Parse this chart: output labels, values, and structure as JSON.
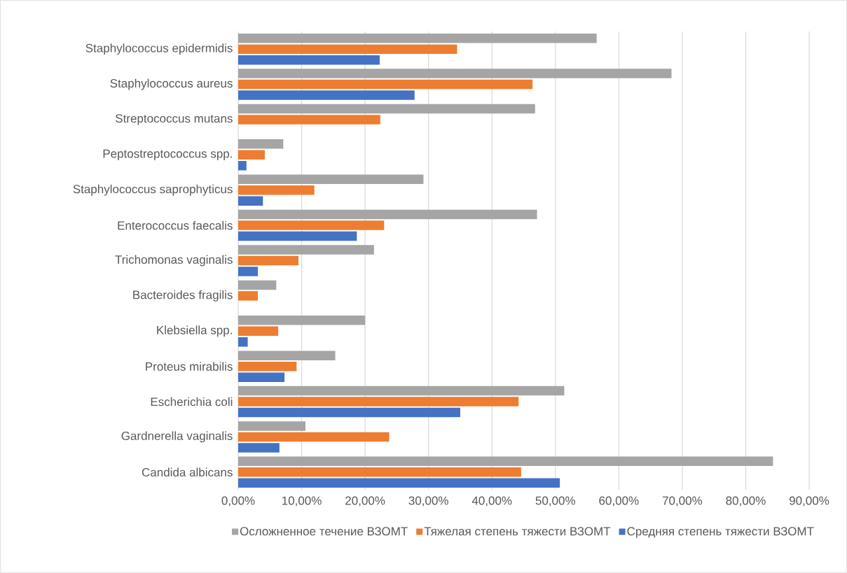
{
  "chart_data": {
    "type": "bar",
    "orientation": "horizontal",
    "categories": [
      "Staphylococcus epidermidis",
      "Staphylococcus aureus",
      "Streptococcus mutans",
      "Peptostreptococcus spp.",
      "Staphylococcus saprophyticus",
      "Enterococcus faecalis",
      "Trichomonas vaginalis",
      "Bacteroides fragilis",
      "Klebsiella spp.",
      "Proteus mirabilis",
      "Escherichia coli",
      "Gardnerella vaginalis",
      "Candida albicans"
    ],
    "series": [
      {
        "name": "Осложненное течение ВЗОМТ",
        "color": "#a5a5a5",
        "values": [
          56.5,
          68.3,
          46.8,
          7.1,
          29.2,
          47.1,
          21.4,
          6.0,
          20.0,
          15.3,
          51.4,
          10.6,
          84.3
        ]
      },
      {
        "name": "Тяжелая степень тяжести ВЗОМТ",
        "color": "#ed7d31",
        "values": [
          34.5,
          46.4,
          22.4,
          4.2,
          12.0,
          23.0,
          9.5,
          3.1,
          6.3,
          9.2,
          44.2,
          23.8,
          44.6
        ]
      },
      {
        "name": "Средняя степень тяжести ВЗОМТ",
        "color": "#4472c4",
        "values": [
          22.3,
          27.8,
          null,
          1.3,
          3.9,
          18.7,
          3.1,
          null,
          1.5,
          7.3,
          35.0,
          6.5,
          50.7
        ]
      }
    ],
    "xlim": [
      0,
      90
    ],
    "xticks": [
      {
        "value": 0,
        "label": "0,00%"
      },
      {
        "value": 10,
        "label": "10,00%"
      },
      {
        "value": 20,
        "label": "20,00%"
      },
      {
        "value": 30,
        "label": "30,00%"
      },
      {
        "value": 40,
        "label": "40,00%"
      },
      {
        "value": 50,
        "label": "50,00%"
      },
      {
        "value": 60,
        "label": "60,00%"
      },
      {
        "value": 70,
        "label": "70,00%"
      },
      {
        "value": 80,
        "label": "80,00%"
      },
      {
        "value": 90,
        "label": "90,00%"
      }
    ],
    "grid": "x",
    "legend": "bottom"
  }
}
